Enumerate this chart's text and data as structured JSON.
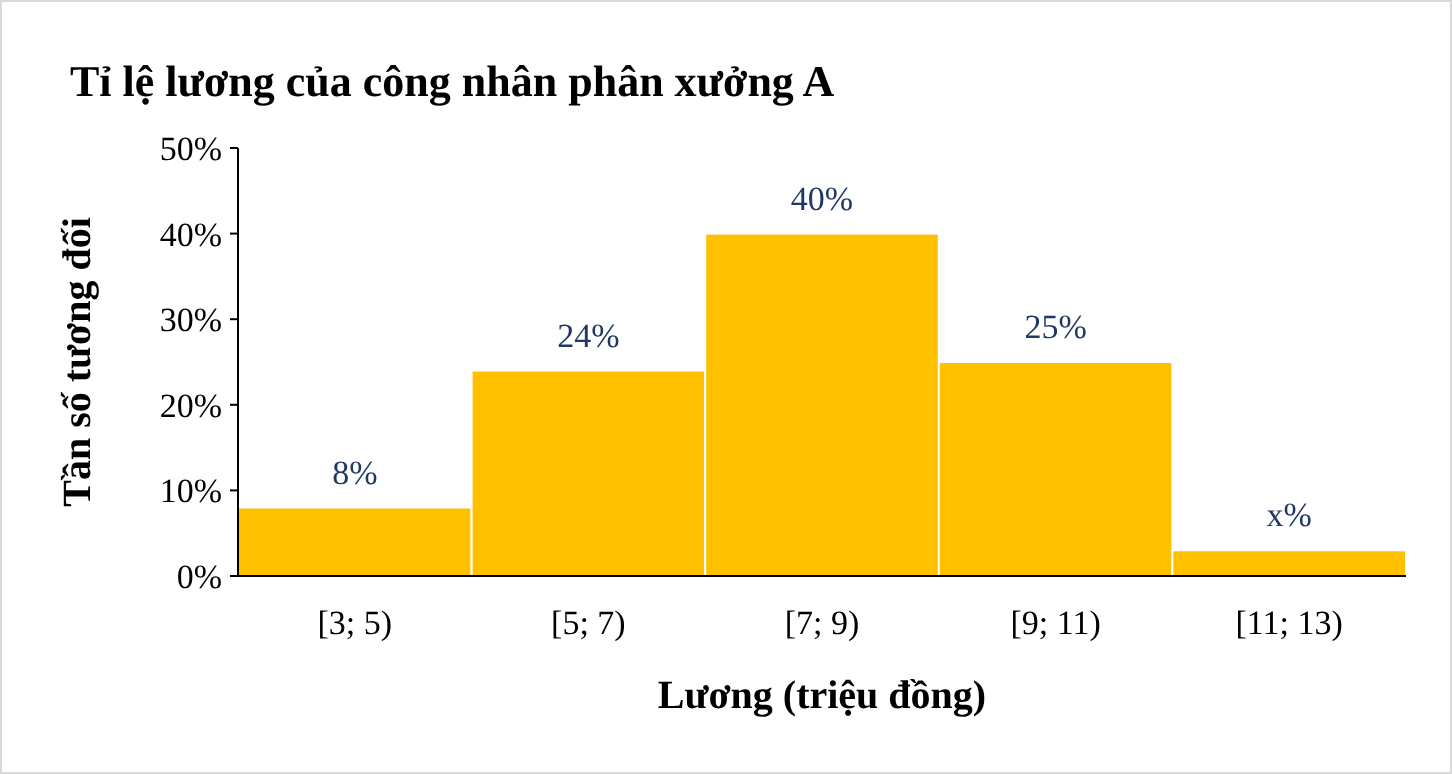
{
  "chart_data": {
    "type": "bar",
    "title": "Tỉ lệ lương của công nhân phân xưởng A",
    "xlabel": "Lương (triệu đồng)",
    "ylabel": "Tần số tương đối",
    "categories": [
      "[3; 5)",
      "[5; 7)",
      "[7; 9)",
      "[9; 11)",
      "[11; 13)"
    ],
    "values": [
      8,
      24,
      40,
      25,
      3
    ],
    "color": "#ffc000",
    "value_labels": [
      "8%",
      "24%",
      "40%",
      "25%",
      "x%"
    ],
    "ylim": [
      0,
      50
    ],
    "yticks": [
      {
        "value": 0,
        "label": "0%"
      },
      {
        "value": 10,
        "label": "10%"
      },
      {
        "value": 20,
        "label": "20%"
      },
      {
        "value": 30,
        "label": "30%"
      },
      {
        "value": 40,
        "label": "40%"
      },
      {
        "value": 50,
        "label": "50%"
      }
    ],
    "grid": false
  }
}
